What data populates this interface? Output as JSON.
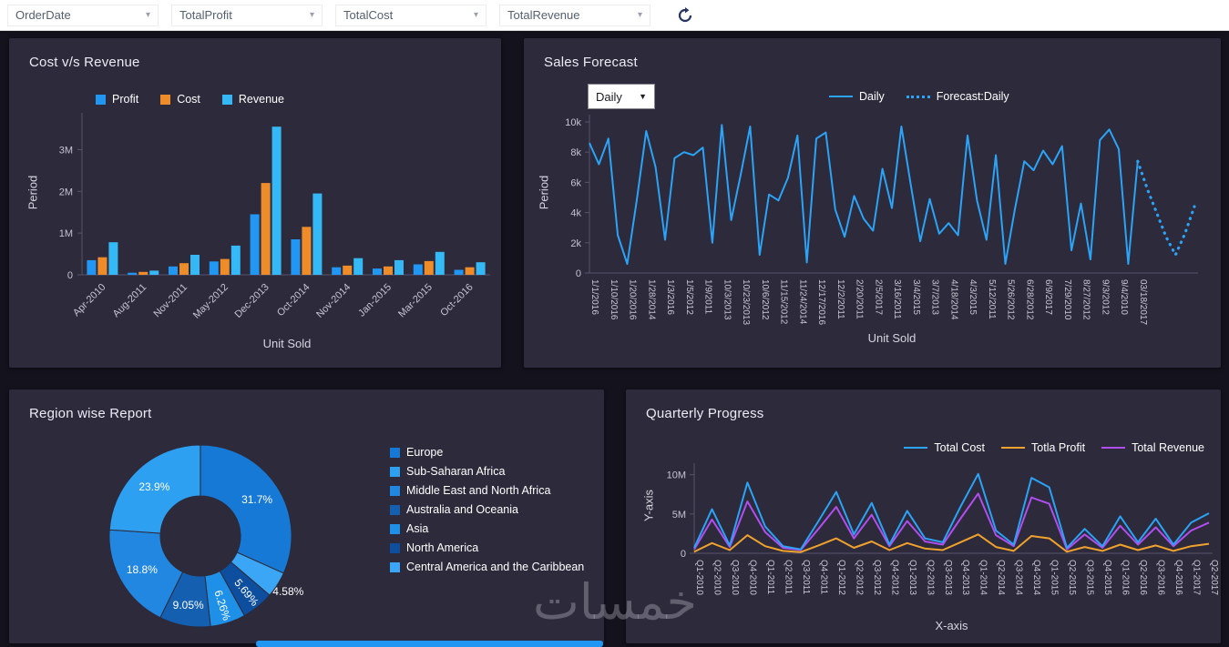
{
  "toolbar": {
    "fields": [
      {
        "label": "OrderDate"
      },
      {
        "label": "TotalProfit"
      },
      {
        "label": "TotalCost"
      },
      {
        "label": "TotalRevenue"
      }
    ],
    "refresh_icon": "refresh",
    "accent_color": "#2196f3"
  },
  "watermark": "خمسات",
  "chart_data": [
    {
      "id": "cost-vs-revenue",
      "type": "bar",
      "title": "Cost v/s Revenue",
      "xlabel": "Unit Sold",
      "ylabel": "Period",
      "ylim": [
        0,
        3.75
      ],
      "yticks": [
        {
          "value": 0,
          "label": "0"
        },
        {
          "value": 1,
          "label": "1M"
        },
        {
          "value": 2,
          "label": "2M"
        },
        {
          "value": 3,
          "label": "3M"
        }
      ],
      "categories": [
        "Apr-2010",
        "Aug-2011",
        "Nov-2011",
        "May-2012",
        "Dec-2013",
        "Oct-2014",
        "Nov-2014",
        "Jan-2015",
        "Mar-2015",
        "Oct-2016"
      ],
      "series": [
        {
          "name": "Profit",
          "color": "#2196f3",
          "values": [
            0.35,
            0.05,
            0.2,
            0.32,
            1.45,
            0.85,
            0.18,
            0.15,
            0.25,
            0.12
          ]
        },
        {
          "name": "Cost",
          "color": "#ef8c2a",
          "values": [
            0.42,
            0.07,
            0.28,
            0.38,
            2.2,
            1.15,
            0.22,
            0.2,
            0.33,
            0.18
          ]
        },
        {
          "name": "Revenue",
          "color": "#35b9f6",
          "values": [
            0.78,
            0.1,
            0.48,
            0.7,
            3.55,
            1.95,
            0.4,
            0.35,
            0.55,
            0.3
          ]
        }
      ],
      "legend_position": "top",
      "grid": false
    },
    {
      "id": "sales-forecast",
      "type": "line",
      "title": "Sales Forecast",
      "xlabel": "Unit Sold",
      "ylabel": "Period",
      "interval_selector": {
        "value": "Daily"
      },
      "ylim": [
        0,
        10000
      ],
      "yticks": [
        {
          "value": 0,
          "label": "0"
        },
        {
          "value": 2000,
          "label": "2k"
        },
        {
          "value": 4000,
          "label": "4k"
        },
        {
          "value": 6000,
          "label": "6k"
        },
        {
          "value": 8000,
          "label": "8k"
        },
        {
          "value": 10000,
          "label": "10k"
        }
      ],
      "categories": [
        "1/1/2016",
        "1/10/2016",
        "1/20/2016",
        "1/28/2014",
        "1/3/2016",
        "1/5/2012",
        "1/9/2011",
        "10/3/2013",
        "10/23/2013",
        "10/6/2012",
        "11/15/2012",
        "11/24/2014",
        "12/17/2016",
        "12/2/2011",
        "2/20/2011",
        "2/5/2017",
        "3/16/2011",
        "3/4/2015",
        "3/7/2013",
        "4/18/2014",
        "4/3/2015",
        "5/12/2011",
        "5/26/2012",
        "6/28/2012",
        "6/9/2017",
        "7/29/2010",
        "8/27/2012",
        "9/3/2012",
        "9/4/2010",
        "03/18/2017"
      ],
      "series": [
        {
          "name": "Daily",
          "color": "#2ba3f7",
          "style": "solid",
          "values": [
            8600,
            7200,
            8900,
            2500,
            600,
            4800,
            9400,
            7000,
            2200,
            7600,
            8000,
            7800,
            8300,
            2000,
            9800,
            3500,
            6500,
            9700,
            1200,
            5200,
            4800,
            6300,
            9100,
            700,
            8900,
            9300,
            4200,
            2400,
            5100,
            3600,
            2800,
            6900,
            4300,
            9700,
            5800,
            2100,
            4900,
            2600,
            3300,
            2500,
            9100,
            4800,
            2200,
            7800,
            600,
            4200,
            7400,
            6800,
            8100,
            7200,
            8400,
            1500,
            4600,
            900,
            8800,
            9500,
            8200,
            600,
            7400
          ]
        },
        {
          "name": "Forecast:Daily",
          "color": "#2ba3f7",
          "style": "dotted",
          "values": [
            5600,
            4000,
            2400,
            1200,
            2600,
            4400
          ]
        }
      ],
      "legend_position": "top",
      "grid": false
    },
    {
      "id": "region-wise-report",
      "type": "pie",
      "title": "Region wise Report",
      "slices": [
        {
          "name": "Europe",
          "value": 31.7,
          "label": "31.7%",
          "color": "#1779d6"
        },
        {
          "name": "Sub-Saharan Africa",
          "value": 23.9,
          "label": "23.9%",
          "color": "#2ea0f2"
        },
        {
          "name": "Middle East and North Africa",
          "value": 18.8,
          "label": "18.8%",
          "color": "#2287e0"
        },
        {
          "name": "Australia and Oceania",
          "value": 9.05,
          "label": "9.05%",
          "color": "#145fb0"
        },
        {
          "name": "Asia",
          "value": 6.26,
          "label": "6.26%",
          "color": "#1e90e8"
        },
        {
          "name": "North America",
          "value": 5.69,
          "label": "5.69%",
          "color": "#0d4f9e"
        },
        {
          "name": "Central America and the Caribbean",
          "value": 4.58,
          "label": "4.58%",
          "color": "#3aa6f5"
        }
      ],
      "clockwise_order": [
        0,
        6,
        5,
        4,
        3,
        2,
        1
      ],
      "legend_position": "right",
      "donut": true
    },
    {
      "id": "quarterly-progress",
      "type": "line",
      "title": "Quarterly Progress",
      "xlabel": "X-axis",
      "ylabel": "Y-axis",
      "ylim": [
        0,
        11
      ],
      "yticks": [
        {
          "value": 0,
          "label": "0"
        },
        {
          "value": 5,
          "label": "5M"
        },
        {
          "value": 10,
          "label": "10M"
        }
      ],
      "categories": [
        "Q1-2010",
        "Q2-2010",
        "Q3-2010",
        "Q4-2010",
        "Q1-2011",
        "Q2-2011",
        "Q3-2011",
        "Q4-2011",
        "Q1-2012",
        "Q2-2012",
        "Q3-2012",
        "Q4-2012",
        "Q1-2013",
        "Q2-2013",
        "Q3-2013",
        "Q4-2013",
        "Q1-2014",
        "Q2-2014",
        "Q3-2014",
        "Q4-2014",
        "Q1-2015",
        "Q2-2015",
        "Q3-2015",
        "Q4-2015",
        "Q1-2016",
        "Q2-2016",
        "Q3-2016",
        "Q4-2016",
        "Q1-2017",
        "Q2-2017"
      ],
      "series": [
        {
          "name": "Total Cost",
          "color": "#2ba3f7",
          "values": [
            0.7,
            5.6,
            1.0,
            9.0,
            3.4,
            0.9,
            0.5,
            4.1,
            7.8,
            2.4,
            6.4,
            1.1,
            5.4,
            1.9,
            1.4,
            5.9,
            10.1,
            2.9,
            1.1,
            9.6,
            8.4,
            0.7,
            3.1,
            0.9,
            4.7,
            1.4,
            4.4,
            1.1,
            3.9,
            5.1
          ]
        },
        {
          "name": "Totla Profit",
          "color": "#f0a22e",
          "values": [
            0.2,
            1.3,
            0.4,
            2.3,
            0.9,
            0.3,
            0.15,
            1.0,
            1.9,
            0.7,
            1.5,
            0.4,
            1.3,
            0.6,
            0.4,
            1.4,
            2.4,
            0.8,
            0.3,
            2.2,
            1.9,
            0.2,
            0.8,
            0.3,
            1.1,
            0.4,
            1.0,
            0.3,
            0.9,
            1.2
          ]
        },
        {
          "name": "Total Revenue",
          "color": "#b14ef0",
          "values": [
            0.5,
            4.3,
            0.8,
            6.6,
            2.7,
            0.7,
            0.4,
            3.1,
            5.9,
            1.9,
            4.9,
            0.9,
            4.1,
            1.5,
            1.1,
            4.4,
            7.6,
            2.3,
            0.9,
            7.1,
            6.3,
            0.5,
            2.4,
            0.7,
            3.5,
            1.1,
            3.3,
            0.9,
            2.9,
            3.9
          ]
        }
      ],
      "legend_position": "top-right",
      "grid": false
    }
  ]
}
